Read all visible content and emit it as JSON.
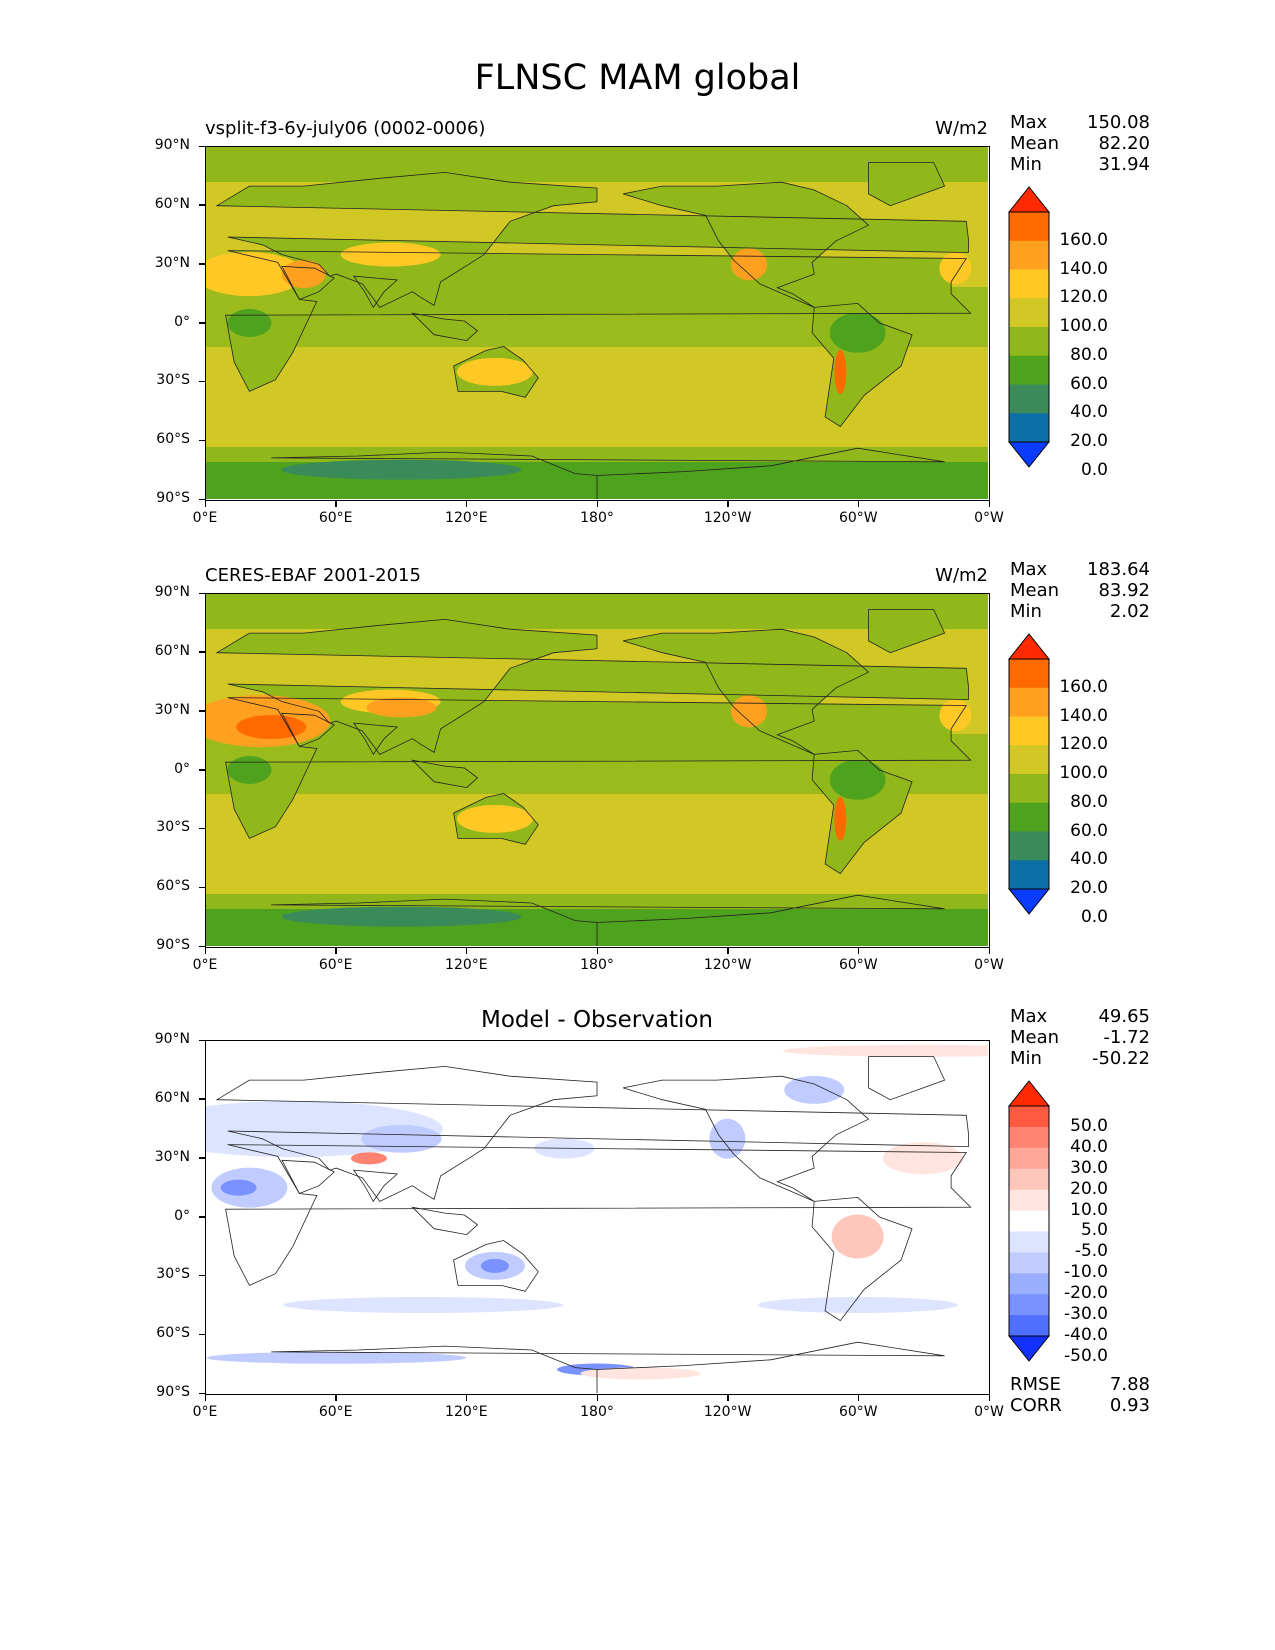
{
  "figure": {
    "title": "FLNSC MAM global"
  },
  "axes": {
    "lat_ticks": [
      "90°N",
      "60°N",
      "30°N",
      "0°",
      "30°S",
      "60°S",
      "90°S"
    ],
    "lon_ticks": [
      "0°E",
      "60°E",
      "120°E",
      "180°",
      "120°W",
      "60°W",
      "0°W"
    ]
  },
  "panels": [
    {
      "left_title": "vsplit-f3-6y-july06 (0002-0006)",
      "units": "W/m2",
      "stats": {
        "max_label": "Max",
        "max": "150.08",
        "mean_label": "Mean",
        "mean": "82.20",
        "min_label": "Min",
        "min": "31.94"
      },
      "colorbar": {
        "labels": [
          "160.0",
          "140.0",
          "120.0",
          "100.0",
          "80.0",
          "60.0",
          "40.0",
          "20.0",
          "0.0"
        ],
        "colors": [
          "#ff2a00",
          "#ff6a00",
          "#ffa020",
          "#ffc825",
          "#d2c825",
          "#91b81a",
          "#4fa21e",
          "#3a8a5a",
          "#0c6fa8",
          "#0a3cff"
        ]
      },
      "colors": {
        "ocean": "#d2c825",
        "land": "#91b81a",
        "cold": "#4fa21e",
        "vcold": "#3a8a5a",
        "warm": "#ffc825",
        "hot": "#ffa020",
        "vhot": "#ff6a00"
      }
    },
    {
      "left_title": "CERES-EBAF 2001-2015",
      "units": "W/m2",
      "stats": {
        "max_label": "Max",
        "max": "183.64",
        "mean_label": "Mean",
        "mean": "83.92",
        "min_label": "Min",
        "min": "2.02"
      },
      "colorbar": {
        "labels": [
          "160.0",
          "140.0",
          "120.0",
          "100.0",
          "80.0",
          "60.0",
          "40.0",
          "20.0",
          "0.0"
        ],
        "colors": [
          "#ff2a00",
          "#ff6a00",
          "#ffa020",
          "#ffc825",
          "#d2c825",
          "#91b81a",
          "#4fa21e",
          "#3a8a5a",
          "#0c6fa8",
          "#0a3cff"
        ]
      },
      "colors": {
        "ocean": "#d2c825",
        "land": "#91b81a",
        "cold": "#4fa21e",
        "vcold": "#3a8a5a",
        "warm": "#ffc825",
        "hot": "#ffa020",
        "vhot": "#ff6a00"
      }
    },
    {
      "center_title": "Model - Observation",
      "stats": {
        "max_label": "Max",
        "max": "49.65",
        "mean_label": "Mean",
        "mean": "-1.72",
        "min_label": "Min",
        "min": "-50.22"
      },
      "colorbar": {
        "labels": [
          "50.0",
          "40.0",
          "30.0",
          "20.0",
          "10.0",
          "5.0",
          "-5.0",
          "-10.0",
          "-20.0",
          "-30.0",
          "-40.0",
          "-50.0"
        ],
        "colors": [
          "#ff2a00",
          "#ff5a40",
          "#ff8370",
          "#ffa89a",
          "#ffc6bc",
          "#ffe4df",
          "#ffffff",
          "#dde4ff",
          "#c0ccff",
          "#9aaeff",
          "#7a92ff",
          "#4f6fff",
          "#1432ff"
        ]
      },
      "metrics": {
        "rmse_label": "RMSE",
        "rmse": "7.88",
        "corr_label": "CORR",
        "corr": "0.93"
      },
      "colors": {
        "base": "#ffffff",
        "neg1": "#dde4ff",
        "neg2": "#c0ccff",
        "neg3": "#7a92ff",
        "pos1": "#ffe4df",
        "pos2": "#ffc6bc",
        "pos3": "#ff8370"
      }
    }
  ]
}
